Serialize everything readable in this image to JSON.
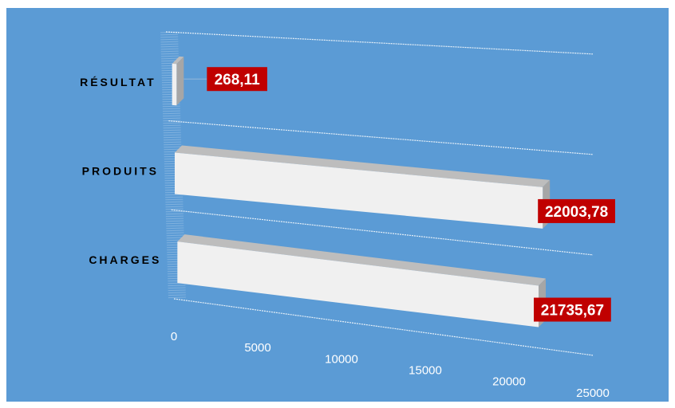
{
  "chart_data": {
    "type": "bar",
    "orientation": "horizontal",
    "style": "3d",
    "categories": [
      "CHARGES",
      "PRODUITS",
      "RÉSULTAT"
    ],
    "values": [
      21735.67,
      22003.78,
      268.11
    ],
    "data_labels": [
      "21735,67",
      "22003,78",
      "268,11"
    ],
    "x_ticks": [
      "0",
      "5000",
      "10000",
      "15000",
      "20000",
      "25000"
    ],
    "xlim": [
      0,
      25000
    ],
    "grid": true,
    "legend": "none",
    "title": "",
    "xlabel": "",
    "ylabel": ""
  },
  "colors": {
    "background": "#5b9bd5",
    "bar_front": "#f0f0f0",
    "bar_top": "#bdbdbd",
    "bar_side": "#a6a6a6",
    "label_box": "#c00000",
    "label_text": "#ffffff",
    "gridline": "#ffffff",
    "category_text": "#000000"
  }
}
